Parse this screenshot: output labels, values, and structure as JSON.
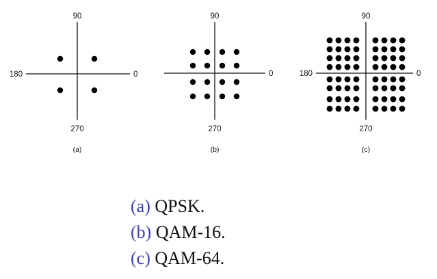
{
  "panels": [
    {
      "id": "a",
      "label": "(a)",
      "angles": {
        "top": "90",
        "left": "180",
        "right": "0",
        "bottom": "270"
      },
      "grid_points_per_axis": 2
    },
    {
      "id": "b",
      "label": "(b)",
      "angles": {
        "top": "90",
        "left": "",
        "right": "0",
        "bottom": "270"
      },
      "grid_points_per_axis": 4
    },
    {
      "id": "c",
      "label": "(c)",
      "angles": {
        "top": "90",
        "left": "180",
        "right": "0",
        "bottom": "270"
      },
      "grid_points_per_axis": 8
    }
  ],
  "captions": [
    {
      "letter": "(a)",
      "text": "QPSK."
    },
    {
      "letter": "(b)",
      "text": "QAM-16."
    },
    {
      "letter": "(c)",
      "text": "QAM-64."
    }
  ],
  "colors": {
    "caption_letter": "#3f3fb4",
    "ink": "#000000"
  }
}
